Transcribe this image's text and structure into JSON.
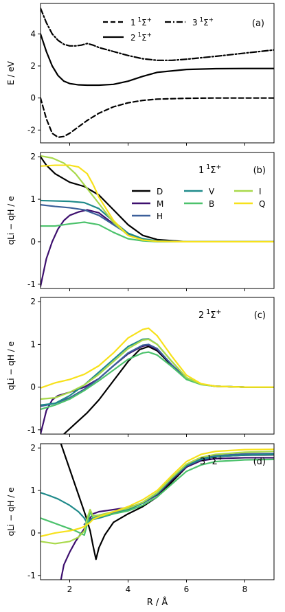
{
  "chart_data": [
    {
      "type": "line",
      "panel_label": "(a)",
      "xlim": [
        1,
        9
      ],
      "ylim": [
        -2.8,
        5.9
      ],
      "yticks": [
        -2,
        0,
        2,
        4
      ],
      "ylabel": "E / eV",
      "grid": false,
      "legend_placement": "top-center",
      "series": [
        {
          "name": "1 1Σ+",
          "name_base": "1",
          "name_sup": "1",
          "name_sym": "Σ",
          "name_sup2": "+",
          "style": "dashed",
          "color": "#000000",
          "x": [
            1.0,
            1.2,
            1.4,
            1.6,
            1.8,
            2.0,
            2.3,
            2.6,
            3.0,
            3.5,
            4.0,
            4.5,
            5.0,
            6.0,
            7.0,
            8.0,
            9.0
          ],
          "y": [
            0.0,
            -1.3,
            -2.2,
            -2.45,
            -2.4,
            -2.2,
            -1.8,
            -1.4,
            -0.95,
            -0.55,
            -0.3,
            -0.15,
            -0.07,
            -0.02,
            0.0,
            0.0,
            0.0
          ]
        },
        {
          "name": "2 1Σ+",
          "name_base": "2",
          "name_sup": "1",
          "name_sym": "Σ",
          "name_sup2": "+",
          "style": "solid",
          "color": "#000000",
          "x": [
            1.0,
            1.2,
            1.4,
            1.6,
            1.8,
            2.0,
            2.3,
            2.6,
            3.0,
            3.5,
            4.0,
            4.5,
            5.0,
            6.0,
            7.0,
            8.0,
            9.0
          ],
          "y": [
            4.0,
            2.9,
            2.0,
            1.4,
            1.05,
            0.9,
            0.82,
            0.8,
            0.8,
            0.85,
            1.05,
            1.35,
            1.6,
            1.78,
            1.83,
            1.84,
            1.84
          ]
        },
        {
          "name": "3 1Σ+",
          "name_base": "3",
          "name_sup": "1",
          "name_sym": "Σ",
          "name_sup2": "+",
          "style": "dashdot",
          "color": "#000000",
          "x": [
            1.0,
            1.2,
            1.4,
            1.6,
            1.8,
            2.0,
            2.2,
            2.4,
            2.6,
            2.8,
            3.0,
            3.5,
            4.0,
            4.5,
            5.0,
            5.5,
            6.0,
            7.0,
            8.0,
            9.0
          ],
          "y": [
            5.6,
            4.7,
            4.0,
            3.6,
            3.35,
            3.25,
            3.25,
            3.3,
            3.4,
            3.3,
            3.15,
            2.9,
            2.65,
            2.45,
            2.35,
            2.35,
            2.42,
            2.6,
            2.8,
            3.0
          ]
        }
      ]
    },
    {
      "type": "line",
      "panel_label": "(b)",
      "state_label": {
        "base": "1",
        "sup": "1",
        "sym": "Σ",
        "sup2": "+"
      },
      "xlim": [
        1,
        9
      ],
      "ylim": [
        -1.1,
        2.1
      ],
      "yticks": [
        -1,
        0,
        1,
        2
      ],
      "ylabel": "qLi − qH / e",
      "grid": false,
      "legend_placement": "center-right",
      "series": [
        {
          "name": "D",
          "color": "#000000",
          "x": [
            1.0,
            1.2,
            1.5,
            2.0,
            2.5,
            3.0,
            3.5,
            4.0,
            4.5,
            5.0,
            6.0,
            7.0,
            8.0,
            9.0
          ],
          "y": [
            2.0,
            1.8,
            1.6,
            1.4,
            1.3,
            1.1,
            0.75,
            0.4,
            0.15,
            0.05,
            0.0,
            0.0,
            0.0,
            0.0
          ]
        },
        {
          "name": "M",
          "color": "#3d0f6e",
          "x": [
            1.0,
            1.2,
            1.4,
            1.6,
            1.8,
            2.0,
            2.3,
            2.6,
            3.0,
            3.5,
            4.0,
            4.5,
            5.0,
            6.0,
            7.0,
            8.0,
            9.0
          ],
          "y": [
            -1.05,
            -0.4,
            0.0,
            0.3,
            0.5,
            0.62,
            0.7,
            0.75,
            0.68,
            0.42,
            0.18,
            0.06,
            0.02,
            0.0,
            0.0,
            0.0,
            0.0
          ]
        },
        {
          "name": "H",
          "color": "#3b5f9a",
          "x": [
            1.0,
            1.5,
            2.0,
            2.5,
            3.0,
            3.5,
            4.0,
            4.5,
            5.0,
            6.0,
            7.0,
            8.0,
            9.0
          ],
          "y": [
            0.87,
            0.83,
            0.8,
            0.75,
            0.62,
            0.4,
            0.18,
            0.06,
            0.02,
            0.0,
            0.0,
            0.0,
            0.0
          ]
        },
        {
          "name": "V",
          "color": "#1f8a8a",
          "x": [
            1.0,
            1.5,
            2.0,
            2.5,
            3.0,
            3.5,
            4.0,
            4.5,
            5.0,
            6.0,
            7.0,
            8.0,
            9.0
          ],
          "y": [
            0.97,
            0.96,
            0.95,
            0.92,
            0.78,
            0.48,
            0.2,
            0.07,
            0.02,
            0.0,
            0.0,
            0.0,
            0.0
          ]
        },
        {
          "name": "B",
          "color": "#4cc26c",
          "x": [
            1.0,
            1.5,
            2.0,
            2.5,
            3.0,
            3.5,
            4.0,
            4.5,
            5.0,
            6.0,
            7.0,
            8.0,
            9.0
          ],
          "y": [
            0.37,
            0.37,
            0.42,
            0.46,
            0.4,
            0.22,
            0.07,
            0.02,
            0.0,
            0.0,
            0.0,
            0.0,
            0.0
          ]
        },
        {
          "name": "I",
          "color": "#a8d94a",
          "x": [
            1.0,
            1.4,
            1.8,
            2.2,
            2.6,
            3.0,
            3.5,
            4.0,
            4.5,
            5.0,
            6.0,
            7.0,
            8.0,
            9.0
          ],
          "y": [
            2.02,
            1.97,
            1.85,
            1.6,
            1.25,
            0.9,
            0.45,
            0.15,
            0.04,
            0.01,
            0.0,
            0.0,
            0.0,
            0.0
          ]
        },
        {
          "name": "Q",
          "color": "#f7e11b",
          "x": [
            1.0,
            1.5,
            2.0,
            2.3,
            2.6,
            2.8,
            3.0,
            3.5,
            4.0,
            4.5,
            5.0,
            6.0,
            7.0,
            8.0,
            9.0
          ],
          "y": [
            1.78,
            1.8,
            1.8,
            1.76,
            1.6,
            1.35,
            1.05,
            0.5,
            0.15,
            0.04,
            0.01,
            0.0,
            0.0,
            0.0,
            0.0
          ]
        }
      ]
    },
    {
      "type": "line",
      "panel_label": "(c)",
      "state_label": {
        "base": "2",
        "sup": "1",
        "sym": "Σ",
        "sup2": "+"
      },
      "xlim": [
        1,
        9
      ],
      "ylim": [
        -1.1,
        2.1
      ],
      "yticks": [
        -1,
        0,
        1,
        2
      ],
      "ylabel": "qLi − qH / e",
      "grid": false,
      "series": [
        {
          "name": "D",
          "color": "#000000",
          "x": [
            1.8,
            2.2,
            2.6,
            3.0,
            3.5,
            4.0,
            4.4,
            4.7,
            5.0,
            5.5,
            6.0,
            6.5,
            7.0,
            8.0,
            9.0
          ],
          "y": [
            -1.1,
            -0.85,
            -0.6,
            -0.3,
            0.15,
            0.6,
            0.88,
            0.95,
            0.85,
            0.5,
            0.2,
            0.07,
            0.02,
            0.0,
            0.0
          ]
        },
        {
          "name": "M",
          "color": "#3d0f6e",
          "x": [
            1.0,
            1.2,
            1.4,
            1.6,
            2.0,
            2.5,
            3.0,
            3.5,
            4.0,
            4.5,
            4.7,
            5.0,
            5.5,
            6.0,
            6.5,
            7.0,
            8.0,
            9.0
          ],
          "y": [
            -1.1,
            -0.55,
            -0.3,
            -0.2,
            -0.12,
            0.0,
            0.2,
            0.5,
            0.78,
            0.96,
            0.98,
            0.88,
            0.52,
            0.2,
            0.07,
            0.02,
            0.0,
            0.0
          ]
        },
        {
          "name": "H",
          "color": "#3b5f9a",
          "x": [
            1.0,
            1.5,
            2.0,
            2.5,
            3.0,
            3.5,
            4.0,
            4.5,
            4.7,
            5.0,
            5.5,
            6.0,
            6.5,
            7.0,
            8.0,
            9.0
          ],
          "y": [
            -0.45,
            -0.38,
            -0.25,
            -0.05,
            0.2,
            0.5,
            0.8,
            0.98,
            1.0,
            0.9,
            0.52,
            0.2,
            0.07,
            0.02,
            0.0,
            0.0
          ]
        },
        {
          "name": "V",
          "color": "#1f8a8a",
          "x": [
            1.0,
            1.5,
            2.0,
            2.5,
            3.0,
            3.5,
            4.0,
            4.5,
            4.7,
            5.0,
            5.5,
            6.0,
            6.5,
            7.0,
            8.0,
            9.0
          ],
          "y": [
            -0.42,
            -0.38,
            -0.2,
            0.05,
            0.35,
            0.65,
            0.95,
            1.12,
            1.13,
            1.0,
            0.6,
            0.22,
            0.07,
            0.02,
            0.0,
            0.0
          ]
        },
        {
          "name": "B",
          "color": "#4cc26c",
          "x": [
            1.0,
            1.5,
            2.0,
            2.5,
            3.0,
            3.5,
            4.0,
            4.5,
            4.7,
            5.0,
            5.5,
            6.0,
            6.5,
            7.0,
            8.0,
            9.0
          ],
          "y": [
            -0.52,
            -0.42,
            -0.28,
            -0.08,
            0.15,
            0.4,
            0.65,
            0.8,
            0.82,
            0.75,
            0.48,
            0.18,
            0.06,
            0.02,
            0.0,
            0.0
          ]
        },
        {
          "name": "I",
          "color": "#a8d94a",
          "x": [
            1.0,
            1.5,
            2.0,
            2.5,
            3.0,
            3.5,
            4.0,
            4.5,
            4.7,
            5.0,
            5.5,
            6.0,
            6.5,
            7.0,
            8.0,
            9.0
          ],
          "y": [
            -0.28,
            -0.25,
            -0.12,
            0.05,
            0.3,
            0.6,
            0.9,
            1.1,
            1.12,
            1.0,
            0.6,
            0.22,
            0.07,
            0.02,
            0.0,
            0.0
          ]
        },
        {
          "name": "Q",
          "color": "#f7e11b",
          "x": [
            1.0,
            1.5,
            2.0,
            2.5,
            3.0,
            3.5,
            4.0,
            4.5,
            4.7,
            5.0,
            5.5,
            6.0,
            6.5,
            7.0,
            8.0,
            9.0
          ],
          "y": [
            -0.02,
            0.1,
            0.18,
            0.3,
            0.5,
            0.8,
            1.15,
            1.35,
            1.38,
            1.2,
            0.72,
            0.28,
            0.08,
            0.02,
            0.0,
            0.0
          ]
        }
      ]
    },
    {
      "type": "line",
      "panel_label": "(d)",
      "state_label": {
        "base": "3",
        "sup": "1",
        "sym": "Σ",
        "sup2": "+"
      },
      "xlim": [
        1,
        9
      ],
      "ylim": [
        -1.1,
        2.1
      ],
      "yticks": [
        -1,
        0,
        1,
        2
      ],
      "xticks": [
        2,
        4,
        6,
        8
      ],
      "xlabel": "R / Å",
      "ylabel": "qLi − qH / e",
      "grid": false,
      "series": [
        {
          "name": "D",
          "color": "#000000",
          "x": [
            1.7,
            2.0,
            2.3,
            2.55,
            2.7,
            2.8,
            2.9,
            3.0,
            3.2,
            3.5,
            4.0,
            4.5,
            5.0,
            5.5,
            6.0,
            6.5,
            7.0,
            8.0,
            9.0
          ],
          "y": [
            2.1,
            1.5,
            0.9,
            0.4,
            0.05,
            -0.3,
            -0.62,
            -0.35,
            -0.05,
            0.25,
            0.45,
            0.62,
            0.85,
            1.2,
            1.55,
            1.72,
            1.8,
            1.83,
            1.84
          ]
        },
        {
          "name": "M",
          "color": "#3d0f6e",
          "x": [
            1.7,
            1.8,
            2.0,
            2.2,
            2.4,
            2.6,
            2.7,
            2.8,
            3.0,
            3.5,
            4.0,
            4.5,
            5.0,
            5.5,
            6.0,
            6.5,
            7.0,
            8.0,
            9.0
          ],
          "y": [
            -1.1,
            -0.75,
            -0.45,
            -0.2,
            0.0,
            0.2,
            0.35,
            0.45,
            0.5,
            0.55,
            0.6,
            0.7,
            0.9,
            1.25,
            1.55,
            1.7,
            1.75,
            1.77,
            1.77
          ]
        },
        {
          "name": "H",
          "color": "#3b5f9a",
          "x": [
            2.5,
            2.65,
            2.8,
            3.0,
            3.5,
            4.0,
            4.5,
            5.0,
            5.5,
            6.0,
            6.5,
            7.0,
            8.0,
            9.0
          ],
          "y": [
            0.2,
            0.3,
            0.35,
            0.4,
            0.48,
            0.58,
            0.72,
            0.95,
            1.3,
            1.6,
            1.75,
            1.82,
            1.86,
            1.87
          ]
        },
        {
          "name": "V",
          "color": "#1f8a8a",
          "x": [
            1.0,
            1.3,
            1.6,
            2.0,
            2.3,
            2.5,
            2.6,
            2.7,
            2.8,
            3.0,
            3.5,
            4.0,
            4.5,
            5.0,
            5.5,
            6.0,
            6.5,
            7.0,
            8.0,
            9.0
          ],
          "y": [
            0.95,
            0.88,
            0.8,
            0.65,
            0.5,
            0.35,
            0.22,
            0.3,
            0.32,
            0.35,
            0.45,
            0.55,
            0.7,
            0.92,
            1.28,
            1.58,
            1.73,
            1.8,
            1.83,
            1.85
          ]
        },
        {
          "name": "B",
          "color": "#4cc26c",
          "x": [
            1.0,
            1.4,
            1.8,
            2.2,
            2.5,
            2.6,
            2.7,
            2.8,
            3.0,
            3.5,
            4.0,
            4.5,
            5.0,
            5.5,
            6.0,
            6.5,
            7.0,
            8.0,
            9.0
          ],
          "y": [
            0.35,
            0.25,
            0.15,
            0.05,
            -0.05,
            0.2,
            0.5,
            0.35,
            0.38,
            0.45,
            0.52,
            0.65,
            0.85,
            1.15,
            1.45,
            1.6,
            1.68,
            1.72,
            1.73
          ]
        },
        {
          "name": "I",
          "color": "#a8d94a",
          "x": [
            1.0,
            1.5,
            2.0,
            2.3,
            2.5,
            2.6,
            2.7,
            2.8,
            3.0,
            3.5,
            4.0,
            4.5,
            5.0,
            5.5,
            6.0,
            6.5,
            7.0,
            8.0,
            9.0
          ],
          "y": [
            -0.2,
            -0.25,
            -0.2,
            -0.1,
            0.05,
            0.35,
            0.55,
            0.4,
            0.42,
            0.5,
            0.58,
            0.72,
            0.95,
            1.3,
            1.62,
            1.78,
            1.85,
            1.9,
            1.92
          ]
        },
        {
          "name": "Q",
          "color": "#f7e11b",
          "x": [
            1.0,
            1.5,
            2.0,
            2.3,
            2.5,
            2.6,
            2.7,
            2.8,
            3.0,
            3.5,
            4.0,
            4.5,
            5.0,
            5.5,
            6.0,
            6.5,
            7.0,
            8.0,
            9.0
          ],
          "y": [
            -0.08,
            0.0,
            0.05,
            0.1,
            0.15,
            0.2,
            0.25,
            0.32,
            0.38,
            0.5,
            0.62,
            0.78,
            1.0,
            1.35,
            1.68,
            1.85,
            1.92,
            1.96,
            1.97
          ]
        }
      ]
    }
  ]
}
